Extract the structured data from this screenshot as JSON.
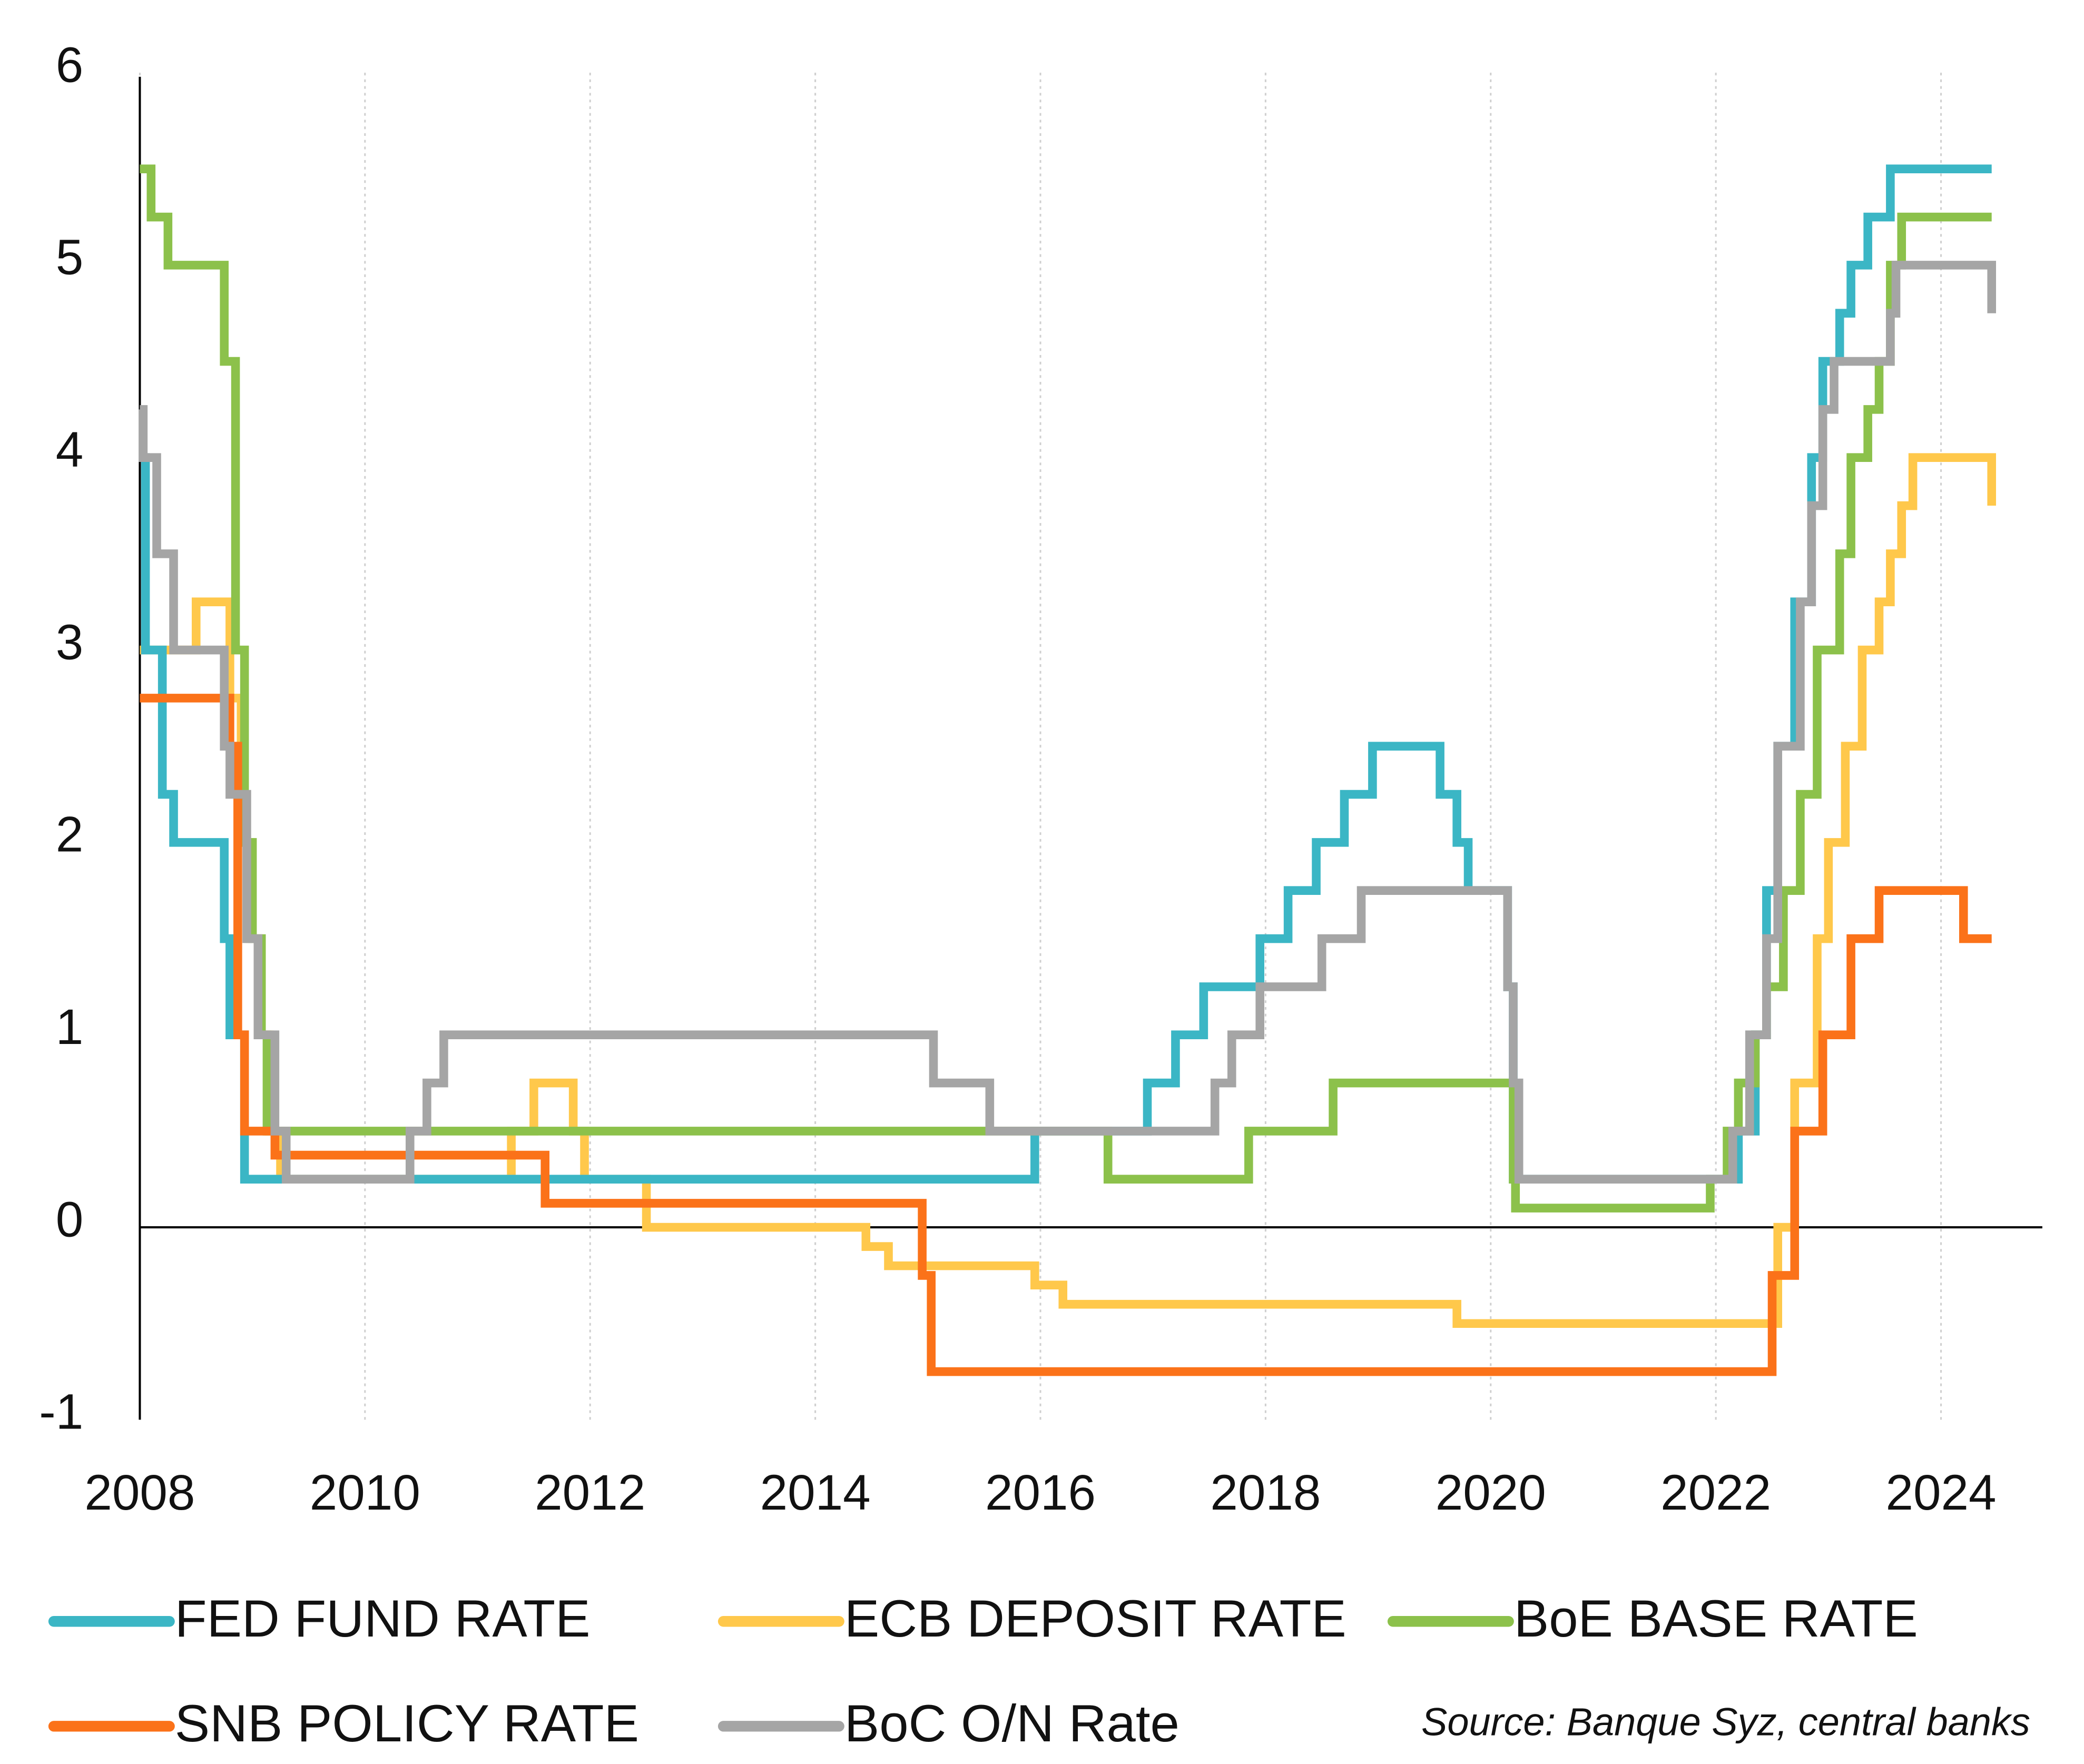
{
  "chart_data": {
    "type": "line",
    "step": true,
    "xlim": [
      2008,
      2024.9
    ],
    "ylim": [
      -1,
      6
    ],
    "xticks": [
      2008,
      2010,
      2012,
      2014,
      2016,
      2018,
      2020,
      2022,
      2024
    ],
    "yticks": [
      -1,
      0,
      1,
      2,
      3,
      4,
      5,
      6
    ],
    "grid": "x",
    "legend": "bottom",
    "source": "Source: Banque Syz, central banks",
    "series": [
      {
        "name": "FED FUND RATE",
        "color": "#3bb6c5",
        "x": [
          2008,
          2008.05,
          2008.2,
          2008.3,
          2008.75,
          2008.8,
          2008.93,
          2015.95,
          2016.95,
          2017.2,
          2017.45,
          2017.95,
          2018.2,
          2018.45,
          2018.7,
          2018.95,
          2019.55,
          2019.7,
          2019.8,
          2020.15,
          2020.2,
          2022.2,
          2022.35,
          2022.45,
          2022.55,
          2022.7,
          2022.85,
          2022.95,
          2023.1,
          2023.2,
          2023.35,
          2023.55,
          2024.45
        ],
        "values": [
          4,
          3,
          2.25,
          2,
          1.5,
          1,
          0.25,
          0.5,
          0.75,
          1,
          1.25,
          1.5,
          1.75,
          2,
          2.25,
          2.5,
          2.25,
          2,
          1.75,
          1.25,
          0.25,
          0.5,
          1,
          1.75,
          2.5,
          3.25,
          4,
          4.5,
          4.75,
          5,
          5.25,
          5.5,
          5.5
        ]
      },
      {
        "name": "ECB DEPOSIT RATE",
        "color": "#ffc84b",
        "x": [
          2008,
          2008.5,
          2008.8,
          2008.9,
          2008.98,
          2009.05,
          2009.15,
          2009.25,
          2011.3,
          2011.5,
          2011.85,
          2011.95,
          2012.5,
          2014.45,
          2014.65,
          2015.95,
          2016.2,
          2019.7,
          2022.55,
          2022.7,
          2022.9,
          2023.0,
          2023.15,
          2023.3,
          2023.45,
          2023.55,
          2023.65,
          2023.75,
          2024.45
        ],
        "values": [
          3,
          3.25,
          2.75,
          2,
          1.5,
          1,
          0.5,
          0.25,
          0.5,
          0.75,
          0.5,
          0.25,
          0,
          -0.1,
          -0.2,
          -0.3,
          -0.4,
          -0.5,
          0,
          0.75,
          1.5,
          2,
          2.5,
          3,
          3.25,
          3.5,
          3.75,
          4,
          3.75
        ]
      },
      {
        "name": "BoE BASE RATE",
        "color": "#8cc14b",
        "x": [
          2008,
          2008.1,
          2008.25,
          2008.75,
          2008.85,
          2008.93,
          2009.0,
          2009.08,
          2009.13,
          2016.6,
          2017.85,
          2018.6,
          2020.2,
          2020.22,
          2021.95,
          2022.1,
          2022.2,
          2022.35,
          2022.45,
          2022.6,
          2022.75,
          2022.9,
          2023.1,
          2023.2,
          2023.35,
          2023.45,
          2023.55,
          2023.65,
          2024.45
        ],
        "values": [
          5.5,
          5.25,
          5,
          4.5,
          3,
          2,
          1.5,
          1,
          0.5,
          0.25,
          0.5,
          0.75,
          0.25,
          0.1,
          0.25,
          0.5,
          0.75,
          1,
          1.25,
          1.75,
          2.25,
          3,
          3.5,
          4,
          4.25,
          4.5,
          5,
          5.25,
          5.25
        ]
      },
      {
        "name": "SNB POLICY RATE",
        "color": "#fb7219",
        "x": [
          2008,
          2008.8,
          2008.87,
          2008.93,
          2009.2,
          2011.6,
          2014.95,
          2015.03,
          2022.5,
          2022.7,
          2022.95,
          2023.2,
          2023.45,
          2024.2,
          2024.45
        ],
        "values": [
          2.75,
          2.5,
          1,
          0.5,
          0.375,
          0.125,
          -0.25,
          -0.75,
          -0.25,
          0.5,
          1,
          1.5,
          1.75,
          1.5,
          1.5
        ]
      },
      {
        "name": "BoC O/N Rate",
        "color": "#a5a5a5",
        "x": [
          2008,
          2008.03,
          2008.15,
          2008.3,
          2008.75,
          2008.8,
          2008.95,
          2009.05,
          2009.2,
          2009.3,
          2010.4,
          2010.55,
          2010.7,
          2015.05,
          2015.55,
          2017.55,
          2017.7,
          2017.95,
          2018.5,
          2018.85,
          2020.15,
          2020.2,
          2020.25,
          2022.15,
          2022.3,
          2022.45,
          2022.55,
          2022.75,
          2022.85,
          2022.95,
          2023.05,
          2023.55,
          2023.6,
          2024.45
        ],
        "values": [
          4.25,
          4,
          3.5,
          3,
          2.5,
          2.25,
          1.5,
          1,
          0.5,
          0.25,
          0.5,
          0.75,
          1,
          0.75,
          0.5,
          0.75,
          1,
          1.25,
          1.5,
          1.75,
          1.25,
          0.75,
          0.25,
          0.5,
          1,
          1.5,
          2.5,
          3.25,
          3.75,
          4.25,
          4.5,
          4.75,
          5,
          4.75
        ]
      }
    ]
  }
}
